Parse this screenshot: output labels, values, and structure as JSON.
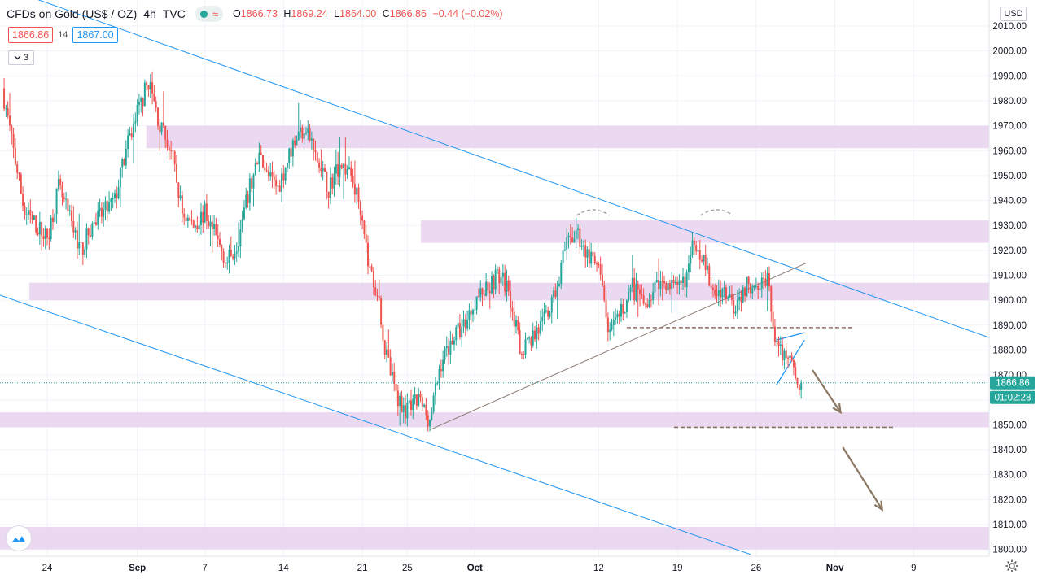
{
  "legend": {
    "symbol": "CFDs on Gold (US$ / OZ)",
    "interval": "4h",
    "source": "TVC",
    "o_label": "O",
    "o_value": "1866.73",
    "h_label": "H",
    "h_value": "1869.24",
    "l_label": "L",
    "l_value": "1864.00",
    "c_label": "C",
    "c_value": "1866.86",
    "change": "−0.44 (−0.02%)",
    "status_dot_icon": "market-status-dot-icon",
    "wave_icon": "data-wave-icon"
  },
  "trade": {
    "sell": "1866.86",
    "spread": "14",
    "buy": "1867.00"
  },
  "indicators_toggle": {
    "icon": "chevron-down-icon",
    "count": "3"
  },
  "currency_button": "USD",
  "price_label": "1866.86",
  "countdown_label": "01:02:28",
  "colors": {
    "up": "#26a69a",
    "down": "#ef5350",
    "zone": "#e8d1ee",
    "channel": "#2196f3",
    "level": "#8d6e63"
  },
  "chart_data": {
    "type": "candlestick",
    "y_ticks": [
      2010,
      2000,
      1990,
      1980,
      1970,
      1960,
      1950,
      1940,
      1930,
      1920,
      1910,
      1900,
      1890,
      1880,
      1870,
      1860,
      1850,
      1840,
      1830,
      1820,
      1810,
      1800
    ],
    "y_tick_labels": [
      "2010.00",
      "2000.00",
      "1990.00",
      "1980.00",
      "1970.00",
      "1960.00",
      "1950.00",
      "1940.00",
      "1930.00",
      "1920.00",
      "1910.00",
      "1900.00",
      "1890.00",
      "1880.00",
      "1870.00",
      "1860.00",
      "1850.00",
      "1840.00",
      "1830.00",
      "1820.00",
      "1810.00",
      "1800.00"
    ],
    "ylim": [
      1797,
      2013
    ],
    "x_labels": [
      "24",
      "Sep",
      "7",
      "14",
      "21",
      "25",
      "Oct",
      "12",
      "19",
      "26",
      "Nov",
      "9"
    ],
    "x_label_day_index": [
      0,
      8,
      14,
      21,
      28,
      32,
      38,
      49,
      56,
      63,
      70,
      77
    ],
    "xlim_days": [
      -4.2,
      83.7
    ],
    "last_price": 1866.86,
    "countdown": "01:02:28",
    "anchors": [
      [
        -4,
        1985
      ],
      [
        -2,
        1935
      ],
      [
        0,
        1925
      ],
      [
        1,
        1945
      ],
      [
        3,
        1920
      ],
      [
        4,
        1930
      ],
      [
        6,
        1940
      ],
      [
        7,
        1960
      ],
      [
        8,
        1975
      ],
      [
        9,
        1988
      ],
      [
        10,
        1970
      ],
      [
        11,
        1960
      ],
      [
        12,
        1935
      ],
      [
        13,
        1930
      ],
      [
        14,
        1935
      ],
      [
        15,
        1925
      ],
      [
        16,
        1915
      ],
      [
        17,
        1925
      ],
      [
        18,
        1945
      ],
      [
        19,
        1960
      ],
      [
        19.5,
        1950
      ],
      [
        20.5,
        1945
      ],
      [
        22,
        1965
      ],
      [
        23,
        1970
      ],
      [
        24,
        1955
      ],
      [
        25,
        1945
      ],
      [
        26,
        1955
      ],
      [
        27,
        1950
      ],
      [
        28,
        1935
      ],
      [
        28.5,
        1915
      ],
      [
        29.5,
        1900
      ],
      [
        30,
        1880
      ],
      [
        31,
        1862
      ],
      [
        32,
        1855
      ],
      [
        33,
        1860
      ],
      [
        34,
        1852
      ],
      [
        35,
        1875
      ],
      [
        36,
        1885
      ],
      [
        37,
        1890
      ],
      [
        38,
        1900
      ],
      [
        39,
        1905
      ],
      [
        40,
        1910
      ],
      [
        41,
        1905
      ],
      [
        42,
        1880
      ],
      [
        43,
        1885
      ],
      [
        44,
        1890
      ],
      [
        45,
        1900
      ],
      [
        46,
        1920
      ],
      [
        47,
        1928
      ],
      [
        48,
        1918
      ],
      [
        49,
        1912
      ],
      [
        50,
        1885
      ],
      [
        51,
        1895
      ],
      [
        52,
        1905
      ],
      [
        53,
        1898
      ],
      [
        54,
        1905
      ],
      [
        55,
        1908
      ],
      [
        56,
        1903
      ],
      [
        57,
        1912
      ],
      [
        57.5,
        1925
      ],
      [
        58.5,
        1915
      ],
      [
        59,
        1902
      ],
      [
        60,
        1905
      ],
      [
        61,
        1898
      ],
      [
        62,
        1905
      ],
      [
        63,
        1908
      ],
      [
        64,
        1908
      ],
      [
        64.5,
        1890
      ],
      [
        65,
        1878
      ],
      [
        66,
        1880
      ],
      [
        66.5,
        1868
      ],
      [
        67,
        1866.86
      ]
    ],
    "zones": [
      {
        "from": 1961,
        "to": 1970,
        "x_start_day": 8.8,
        "x_end_day": 83.7
      },
      {
        "from": 1923,
        "to": 1932,
        "x_start_day": 33.2,
        "x_end_day": 83.7
      },
      {
        "from": 1900,
        "to": 1907,
        "x_start_day": -1.6,
        "x_end_day": 83.7
      },
      {
        "from": 1849,
        "to": 1855,
        "x_start_day": -4.2,
        "x_end_day": 83.7
      },
      {
        "from": 1800,
        "to": 1809,
        "x_start_day": -4.2,
        "x_end_day": 83.7
      }
    ],
    "trendlines": [
      {
        "kind": "channel-top",
        "points": [
          [
            -4.2,
            2026
          ],
          [
            83.7,
            1885
          ]
        ]
      },
      {
        "kind": "channel-bottom",
        "points": [
          [
            -4.2,
            1902
          ],
          [
            62.5,
            1798
          ]
        ]
      },
      {
        "kind": "rising-support",
        "points": [
          [
            34,
            1848
          ],
          [
            67.5,
            1915
          ]
        ]
      },
      {
        "kind": "flag-top",
        "points": [
          [
            64.8,
            1884
          ],
          [
            67.3,
            1887
          ]
        ]
      },
      {
        "kind": "flag-bottom",
        "points": [
          [
            64.8,
            1866
          ],
          [
            67.3,
            1884
          ]
        ]
      }
    ],
    "levels": [
      {
        "price": 1889,
        "from_day": 51.5,
        "to_day": 71.5
      },
      {
        "price": 1849,
        "from_day": 55.7,
        "to_day": 75.2
      }
    ],
    "arcs": [
      {
        "center_day": 48.5,
        "price": 1934
      },
      {
        "center_day": 59.5,
        "price": 1934
      }
    ],
    "arrows": [
      {
        "from": [
          68,
          1872
        ],
        "to": [
          70.5,
          1855
        ]
      },
      {
        "from": [
          70.7,
          1841
        ],
        "to": [
          74.2,
          1816
        ]
      }
    ]
  }
}
